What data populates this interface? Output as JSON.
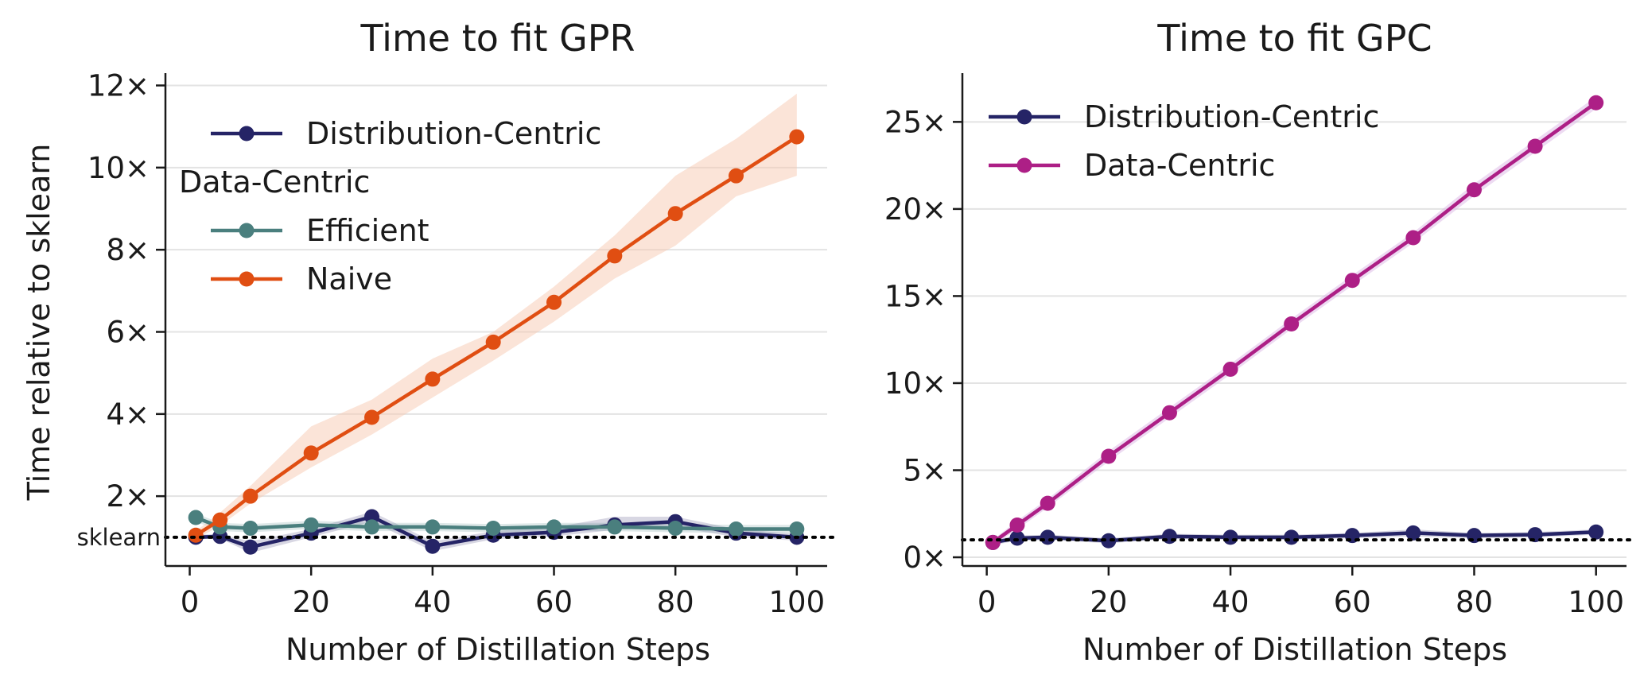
{
  "chart_data": [
    {
      "type": "line",
      "title": "Time to fit GPR",
      "xlabel": "Number of Distillation Steps",
      "ylabel": "Time relative to sklearn",
      "xlim": [
        -4,
        105
      ],
      "ylim": [
        0.3,
        12.3
      ],
      "xticks": [
        0,
        20,
        40,
        60,
        80,
        100
      ],
      "yticks": [
        2,
        4,
        6,
        8,
        10,
        12
      ],
      "ytick_suffix": "×",
      "grid": "horizontal",
      "reference_line": {
        "y": 1.0,
        "label": "sklearn",
        "style": "dotted",
        "color": "#000000"
      },
      "legend": {
        "placement": "top-left",
        "entries": [
          "Distribution-Centric",
          "Efficient",
          "Naive"
        ],
        "group_header": {
          "text": "Data-Centric",
          "before_entry": 1
        }
      },
      "series": [
        {
          "name": "Distribution-Centric",
          "color": "#252466",
          "x": [
            1,
            5,
            10,
            20,
            30,
            40,
            50,
            60,
            70,
            80,
            90,
            100
          ],
          "values": [
            1.0,
            1.02,
            0.76,
            1.1,
            1.5,
            0.78,
            1.05,
            1.12,
            1.3,
            1.38,
            1.1,
            1.0
          ],
          "lower": [
            0.95,
            0.97,
            0.62,
            1.0,
            1.38,
            0.66,
            0.95,
            1.02,
            1.18,
            1.25,
            1.0,
            0.92
          ],
          "upper": [
            1.06,
            1.08,
            0.9,
            1.2,
            1.62,
            0.9,
            1.15,
            1.24,
            1.5,
            1.5,
            1.2,
            1.08
          ]
        },
        {
          "name": "Efficient",
          "color": "#4a7f7e",
          "x": [
            1,
            5,
            10,
            20,
            30,
            40,
            50,
            60,
            70,
            80,
            90,
            100
          ],
          "values": [
            1.48,
            1.25,
            1.22,
            1.3,
            1.25,
            1.25,
            1.22,
            1.25,
            1.25,
            1.22,
            1.2,
            1.2
          ],
          "lower": [
            1.38,
            1.15,
            1.12,
            1.2,
            1.15,
            1.15,
            1.12,
            1.15,
            1.15,
            1.12,
            1.1,
            1.1
          ],
          "upper": [
            1.58,
            1.35,
            1.32,
            1.4,
            1.35,
            1.35,
            1.32,
            1.35,
            1.35,
            1.32,
            1.3,
            1.3
          ]
        },
        {
          "name": "Naive",
          "color": "#e04e12",
          "band_color": "#f7c9b2",
          "x": [
            1,
            5,
            10,
            20,
            30,
            40,
            50,
            60,
            70,
            80,
            90,
            100
          ],
          "values": [
            1.05,
            1.42,
            2.0,
            3.05,
            3.92,
            4.85,
            5.75,
            6.72,
            7.85,
            8.88,
            9.8,
            10.75
          ],
          "lower": [
            0.95,
            1.28,
            1.82,
            2.7,
            3.5,
            4.4,
            5.3,
            6.25,
            7.3,
            8.1,
            9.3,
            9.8
          ],
          "upper": [
            1.15,
            1.6,
            2.25,
            3.7,
            4.35,
            5.35,
            6.0,
            7.1,
            8.35,
            9.8,
            10.7,
            11.8
          ]
        }
      ]
    },
    {
      "type": "line",
      "title": "Time to fit GPC",
      "xlabel": "Number of Distillation Steps",
      "ylabel": "",
      "xlim": [
        -4,
        105
      ],
      "ylim": [
        -0.5,
        27.8
      ],
      "xticks": [
        0,
        20,
        40,
        60,
        80,
        100
      ],
      "yticks": [
        0,
        5,
        10,
        15,
        20,
        25
      ],
      "ytick_suffix": "×",
      "grid": "horizontal",
      "reference_line": {
        "y": 1.0,
        "style": "dotted",
        "color": "#000000"
      },
      "legend": {
        "placement": "top-left",
        "entries": [
          "Distribution-Centric",
          "Data-Centric"
        ]
      },
      "series": [
        {
          "name": "Distribution-Centric",
          "color": "#252466",
          "x": [
            1,
            5,
            10,
            20,
            30,
            40,
            50,
            60,
            70,
            80,
            90,
            100
          ],
          "values": [
            0.85,
            1.1,
            1.15,
            0.95,
            1.2,
            1.15,
            1.15,
            1.25,
            1.4,
            1.25,
            1.3,
            1.45
          ],
          "lower": [
            0.7,
            0.95,
            1.0,
            0.8,
            1.05,
            1.0,
            1.0,
            1.1,
            1.2,
            1.1,
            1.15,
            1.3
          ],
          "upper": [
            1.0,
            1.25,
            1.3,
            1.1,
            1.35,
            1.3,
            1.3,
            1.4,
            1.6,
            1.4,
            1.45,
            1.6
          ]
        },
        {
          "name": "Data-Centric",
          "color": "#ad1f86",
          "band_color": "#dbb8e6",
          "x": [
            1,
            5,
            10,
            20,
            30,
            40,
            50,
            60,
            70,
            80,
            90,
            100
          ],
          "values": [
            0.85,
            1.85,
            3.1,
            5.8,
            8.3,
            10.8,
            13.4,
            15.9,
            18.35,
            21.1,
            23.6,
            26.1
          ],
          "lower": [
            0.7,
            1.6,
            2.85,
            5.5,
            8.0,
            10.5,
            13.1,
            15.6,
            18.05,
            20.75,
            23.25,
            25.75
          ],
          "upper": [
            1.0,
            2.1,
            3.35,
            6.1,
            8.6,
            11.1,
            13.7,
            16.2,
            18.65,
            21.45,
            23.95,
            26.45
          ]
        }
      ]
    }
  ]
}
